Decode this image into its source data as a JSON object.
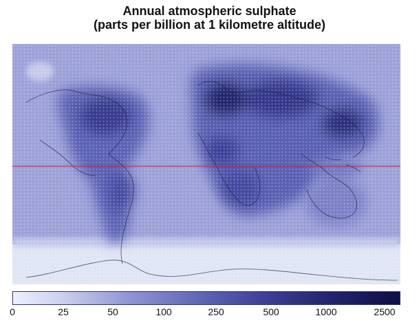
{
  "title": {
    "line1": "Annual atmospheric sulphate",
    "line2": "(parts per billion at 1 kilometre altitude)"
  },
  "legend": {
    "ticks": [
      "0",
      "25",
      "50",
      "100",
      "250",
      "500",
      "1000",
      "2500"
    ]
  },
  "colors": {
    "low": "#eef0fb",
    "high": "#0e0f45",
    "equator_line": "#c0203a",
    "coastline": "#1b1d3c"
  }
}
